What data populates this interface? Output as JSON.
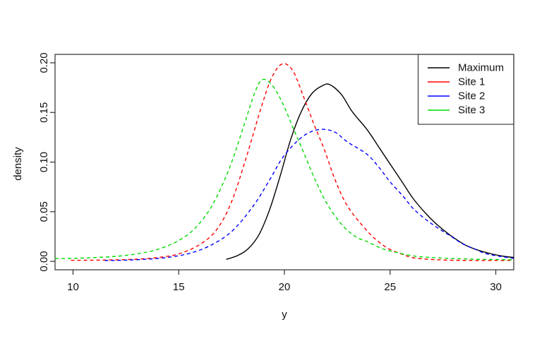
{
  "chart_data": {
    "type": "line",
    "title": "",
    "xlabel": "y",
    "ylabel": "density",
    "x_ticks": [
      "10",
      "15",
      "20",
      "25",
      "30"
    ],
    "x_tick_values": [
      10,
      15,
      20,
      25,
      30
    ],
    "y_ticks": [
      "0.00",
      "0.05",
      "0.10",
      "0.15",
      "0.20"
    ],
    "y_tick_values": [
      0,
      0.05,
      0.1,
      0.15,
      0.2
    ],
    "xlim": [
      9.15,
      30.85
    ],
    "ylim": [
      -0.0085,
      0.2085
    ],
    "grid": false,
    "background": "#ffffff",
    "legend": {
      "position": "topright",
      "entries": [
        {
          "label": "Maximum",
          "color": "#000000",
          "line_style": "solid"
        },
        {
          "label": "Site 1",
          "color": "#ff0000",
          "line_style": "solid"
        },
        {
          "label": "Site 2",
          "color": "#0000ff",
          "line_style": "solid"
        },
        {
          "label": "Site 3",
          "color": "#00dd00",
          "line_style": "solid"
        }
      ]
    },
    "series": [
      {
        "name": "Maximum",
        "color": "#000000",
        "dash": "solid",
        "points": [
          [
            17.25,
            0.002
          ],
          [
            17.8,
            0.006
          ],
          [
            18.3,
            0.013
          ],
          [
            18.8,
            0.027
          ],
          [
            19.3,
            0.052
          ],
          [
            19.8,
            0.086
          ],
          [
            20.3,
            0.123
          ],
          [
            20.8,
            0.151
          ],
          [
            21.3,
            0.169
          ],
          [
            21.8,
            0.177
          ],
          [
            22.15,
            0.178
          ],
          [
            22.7,
            0.168
          ],
          [
            23.2,
            0.151
          ],
          [
            23.9,
            0.133
          ],
          [
            24.5,
            0.114
          ],
          [
            25.0,
            0.098
          ],
          [
            25.6,
            0.079
          ],
          [
            26.1,
            0.063
          ],
          [
            26.7,
            0.048
          ],
          [
            27.3,
            0.0355
          ],
          [
            28.0,
            0.024
          ],
          [
            28.6,
            0.016
          ],
          [
            29.2,
            0.011
          ],
          [
            29.8,
            0.0075
          ],
          [
            30.4,
            0.005
          ],
          [
            30.85,
            0.004
          ]
        ]
      },
      {
        "name": "Site 1",
        "color": "#ff0000",
        "dash": "dashed",
        "points": [
          [
            9.9,
            0.001
          ],
          [
            11,
            0.0012
          ],
          [
            12,
            0.0015
          ],
          [
            13,
            0.0022
          ],
          [
            14,
            0.0038
          ],
          [
            15,
            0.0075
          ],
          [
            16,
            0.017
          ],
          [
            16.8,
            0.032
          ],
          [
            17.5,
            0.06
          ],
          [
            18.2,
            0.105
          ],
          [
            18.9,
            0.155
          ],
          [
            19.4,
            0.185
          ],
          [
            19.9,
            0.199
          ],
          [
            20.4,
            0.192
          ],
          [
            20.9,
            0.166
          ],
          [
            21.4,
            0.138
          ],
          [
            21.9,
            0.112
          ],
          [
            22.4,
            0.082
          ],
          [
            23.0,
            0.055
          ],
          [
            23.9,
            0.031
          ],
          [
            24.5,
            0.019
          ],
          [
            25.0,
            0.012
          ],
          [
            25.6,
            0.007
          ],
          [
            26.1,
            0.0036
          ],
          [
            27.0,
            0.0018
          ],
          [
            28.0,
            0.0011
          ],
          [
            29.0,
            0.0009
          ],
          [
            30.0,
            0.0009
          ],
          [
            30.85,
            0.001
          ]
        ]
      },
      {
        "name": "Site 2",
        "color": "#0000ff",
        "dash": "dashed",
        "points": [
          [
            11.5,
            0.0008
          ],
          [
            12.5,
            0.0012
          ],
          [
            13.5,
            0.0022
          ],
          [
            14.5,
            0.004
          ],
          [
            15.5,
            0.008
          ],
          [
            16.5,
            0.016
          ],
          [
            17.5,
            0.03
          ],
          [
            18.5,
            0.055
          ],
          [
            19.3,
            0.082
          ],
          [
            19.9,
            0.104
          ],
          [
            20.6,
            0.121
          ],
          [
            21.2,
            0.13
          ],
          [
            21.8,
            0.133
          ],
          [
            22.4,
            0.13
          ],
          [
            23.0,
            0.12
          ],
          [
            23.9,
            0.108
          ],
          [
            24.5,
            0.094
          ],
          [
            25.0,
            0.08
          ],
          [
            25.6,
            0.066
          ],
          [
            26.1,
            0.053
          ],
          [
            26.7,
            0.042
          ],
          [
            27.3,
            0.033
          ],
          [
            27.9,
            0.025
          ],
          [
            28.4,
            0.018
          ],
          [
            29.0,
            0.0125
          ],
          [
            29.5,
            0.008
          ],
          [
            30.2,
            0.005
          ],
          [
            30.85,
            0.003
          ]
        ]
      },
      {
        "name": "Site 3",
        "color": "#00dd00",
        "dash": "dashed",
        "points": [
          [
            9.15,
            0.0028
          ],
          [
            10,
            0.003
          ],
          [
            11,
            0.0038
          ],
          [
            12,
            0.005
          ],
          [
            13,
            0.0075
          ],
          [
            14,
            0.012
          ],
          [
            15,
            0.021
          ],
          [
            15.8,
            0.034
          ],
          [
            16.6,
            0.057
          ],
          [
            17.4,
            0.094
          ],
          [
            18.1,
            0.138
          ],
          [
            18.6,
            0.17
          ],
          [
            18.95,
            0.183
          ],
          [
            19.4,
            0.178
          ],
          [
            19.9,
            0.16
          ],
          [
            20.4,
            0.135
          ],
          [
            20.9,
            0.11
          ],
          [
            21.5,
            0.08
          ],
          [
            22.1,
            0.055
          ],
          [
            22.8,
            0.035
          ],
          [
            23.4,
            0.0245
          ],
          [
            23.9,
            0.02
          ],
          [
            24.6,
            0.013
          ],
          [
            25.2,
            0.0095
          ],
          [
            26.1,
            0.0055
          ],
          [
            27.0,
            0.0038
          ],
          [
            28.0,
            0.0028
          ],
          [
            29.0,
            0.0022
          ],
          [
            30.0,
            0.0018
          ],
          [
            30.85,
            0.0016
          ]
        ]
      }
    ]
  }
}
